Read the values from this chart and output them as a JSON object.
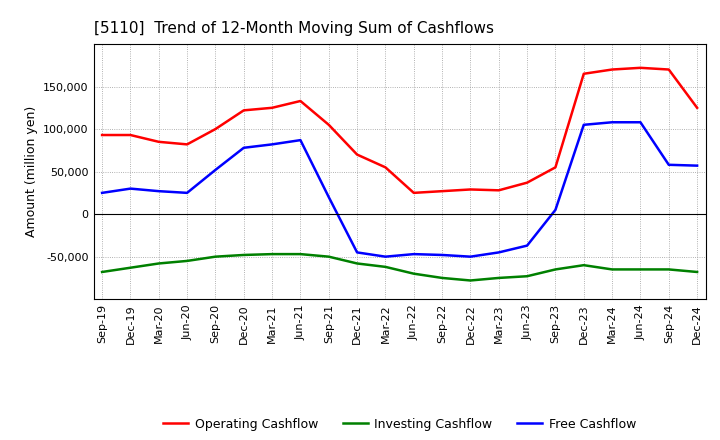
{
  "title": "[5110]  Trend of 12-Month Moving Sum of Cashflows",
  "ylabel": "Amount (million yen)",
  "x_labels": [
    "Sep-19",
    "Dec-19",
    "Mar-20",
    "Jun-20",
    "Sep-20",
    "Dec-20",
    "Mar-21",
    "Jun-21",
    "Sep-21",
    "Dec-21",
    "Mar-22",
    "Jun-22",
    "Sep-22",
    "Dec-22",
    "Mar-23",
    "Jun-23",
    "Sep-23",
    "Dec-23",
    "Mar-24",
    "Jun-24",
    "Sep-24",
    "Dec-24"
  ],
  "operating": [
    93000,
    93000,
    85000,
    82000,
    100000,
    122000,
    125000,
    133000,
    105000,
    70000,
    55000,
    25000,
    27000,
    29000,
    28000,
    37000,
    55000,
    165000,
    170000,
    172000,
    170000,
    125000
  ],
  "investing": [
    -68000,
    -63000,
    -58000,
    -55000,
    -50000,
    -48000,
    -47000,
    -47000,
    -50000,
    -58000,
    -62000,
    -70000,
    -75000,
    -78000,
    -75000,
    -73000,
    -65000,
    -60000,
    -65000,
    -65000,
    -65000,
    -68000
  ],
  "free": [
    25000,
    30000,
    27000,
    25000,
    52000,
    78000,
    82000,
    87000,
    20000,
    -45000,
    -50000,
    -47000,
    -48000,
    -50000,
    -45000,
    -37000,
    5000,
    105000,
    108000,
    108000,
    58000,
    57000
  ],
  "operating_color": "#ff0000",
  "investing_color": "#008000",
  "free_color": "#0000ff",
  "ylim": [
    -100000,
    200000
  ],
  "yticks": [
    -50000,
    0,
    50000,
    100000,
    150000
  ],
  "bg_color": "#ffffff",
  "plot_bg_color": "#ffffff",
  "grid_color": "#999999",
  "title_fontsize": 11,
  "legend_fontsize": 9,
  "axis_fontsize": 8,
  "ylabel_fontsize": 9,
  "line_width": 1.8
}
